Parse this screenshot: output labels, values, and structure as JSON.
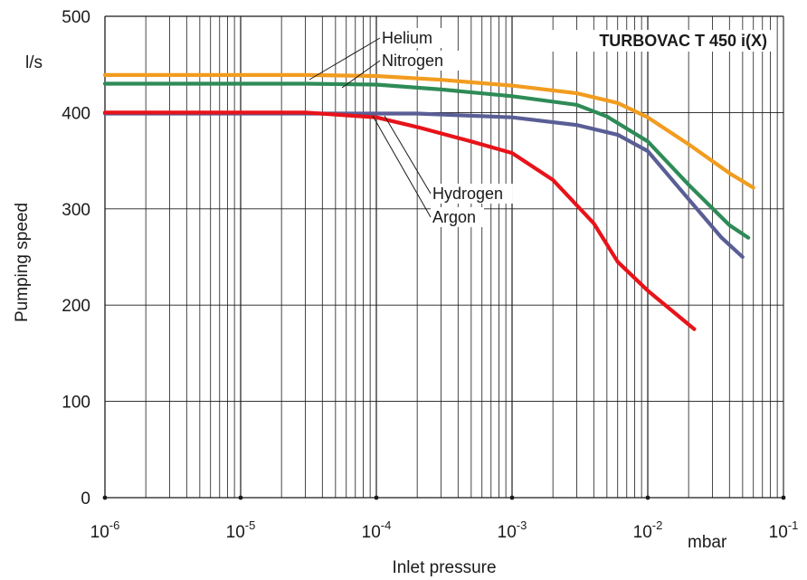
{
  "chart_data": {
    "type": "line",
    "title": "TURBOVAC T 450 i(X)",
    "xlabel": "Inlet pressure",
    "ylabel": "Pumping speed",
    "x_unit": "mbar",
    "y_unit": "l/s",
    "x_scale": "log",
    "xlim": [
      1e-06,
      0.1
    ],
    "ylim": [
      0,
      500
    ],
    "grid": true,
    "x_ticks": [
      {
        "base": "10",
        "exp": "-6"
      },
      {
        "base": "10",
        "exp": "-5"
      },
      {
        "base": "10",
        "exp": "-4"
      },
      {
        "base": "10",
        "exp": "-3"
      },
      {
        "base": "10",
        "exp": "-2"
      },
      {
        "base": "10",
        "exp": "-1"
      }
    ],
    "y_ticks": [
      "0",
      "100",
      "200",
      "300",
      "400",
      "500"
    ],
    "series": [
      {
        "name": "Helium",
        "color": "#f29c1f",
        "x": [
          1e-06,
          1e-05,
          3e-05,
          0.0001,
          0.0003,
          0.001,
          0.003,
          0.006,
          0.01,
          0.02,
          0.04,
          0.06
        ],
        "y": [
          439,
          439,
          439,
          438,
          434,
          428,
          420,
          410,
          395,
          367,
          337,
          322
        ]
      },
      {
        "name": "Nitrogen",
        "color": "#2e8b57",
        "x": [
          1e-06,
          1e-05,
          3e-05,
          0.0001,
          0.0003,
          0.001,
          0.003,
          0.005,
          0.01,
          0.02,
          0.04,
          0.055
        ],
        "y": [
          430,
          430,
          430,
          429,
          424,
          417,
          408,
          396,
          370,
          325,
          283,
          270
        ]
      },
      {
        "name": "Hydrogen",
        "color": "#5a5e96",
        "x": [
          1e-06,
          1e-05,
          3e-05,
          0.0001,
          0.0002,
          0.001,
          0.003,
          0.006,
          0.01,
          0.02,
          0.035,
          0.05
        ],
        "y": [
          399,
          399,
          399,
          399,
          399,
          395,
          387,
          377,
          360,
          310,
          270,
          250
        ]
      },
      {
        "name": "Argon",
        "color": "#e8131a",
        "x": [
          1e-06,
          1e-05,
          3e-05,
          0.0001,
          0.0002,
          0.0005,
          0.001,
          0.002,
          0.004,
          0.006,
          0.01,
          0.022
        ],
        "y": [
          400,
          400,
          400,
          395,
          385,
          370,
          358,
          330,
          285,
          245,
          215,
          175
        ]
      }
    ],
    "annotations": [
      {
        "text": "Helium",
        "series": "Helium"
      },
      {
        "text": "Nitrogen",
        "series": "Nitrogen"
      },
      {
        "text": "Hydrogen",
        "series": "Hydrogen"
      },
      {
        "text": "Argon",
        "series": "Argon"
      }
    ]
  }
}
